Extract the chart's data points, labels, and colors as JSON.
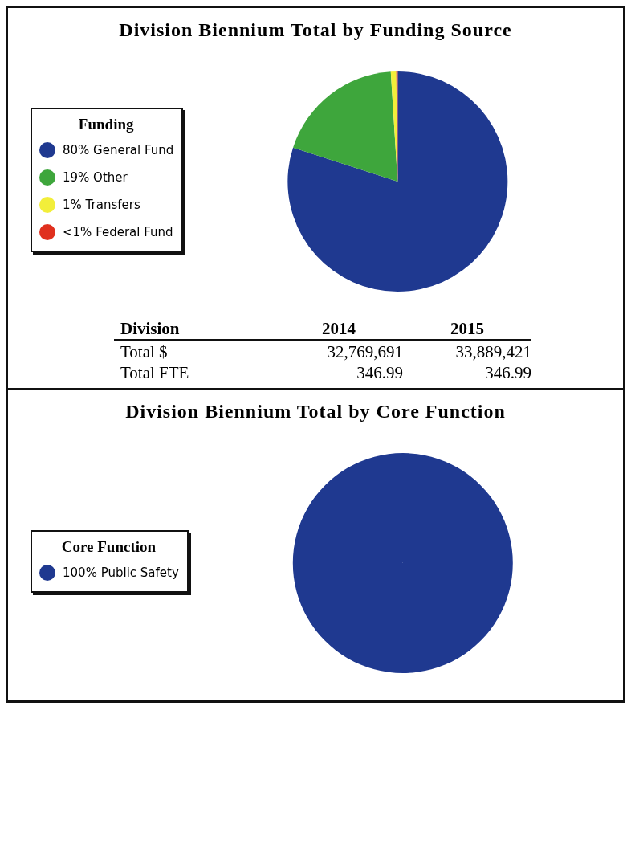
{
  "chart_data": [
    {
      "type": "pie",
      "title": "Division Biennium Total by Funding Source",
      "legend_title": "Funding",
      "legend": "left",
      "categories": [
        "80% General Fund",
        "19% Other",
        "1% Transfers",
        "<1% Federal Fund"
      ],
      "values": [
        80,
        19,
        0.8,
        0.2
      ],
      "colors": [
        "#1f3990",
        "#3ea63c",
        "#f2ee3a",
        "#e0301e"
      ],
      "annotations": [
        "Division",
        "2014",
        "2015",
        "Total $",
        "32,769,691",
        "33,889,421",
        "Total FTE",
        "346.99",
        "346.99"
      ]
    },
    {
      "type": "pie",
      "title": "Division Biennium Total by Core Function",
      "legend_title": "Core Function",
      "legend": "left",
      "categories": [
        "100% Public Safety"
      ],
      "values": [
        100
      ],
      "colors": [
        "#1f3990"
      ]
    }
  ]
}
